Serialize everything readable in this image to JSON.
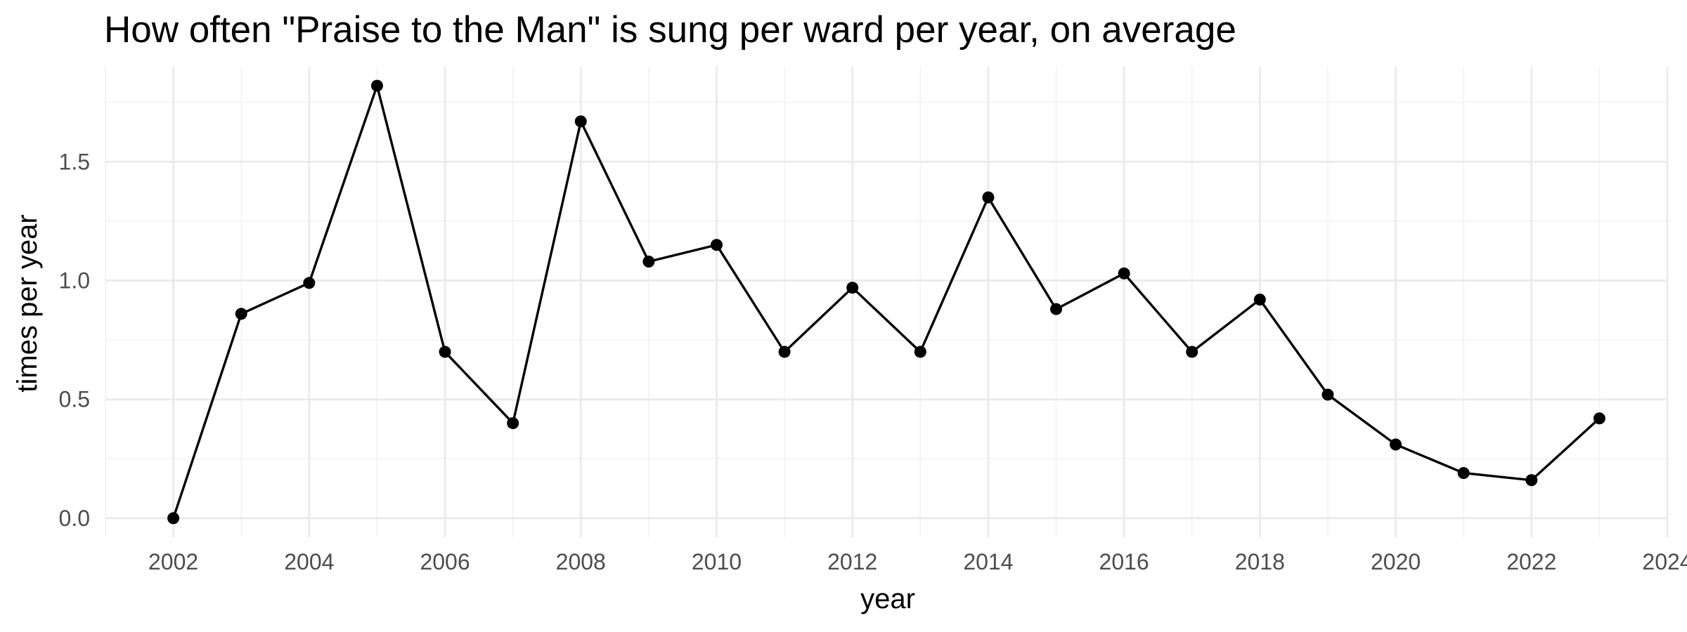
{
  "chart_data": {
    "type": "line",
    "title": "How often \"Praise to the Man\" is sung per ward per year, on average",
    "xlabel": "year",
    "ylabel": "times per year",
    "x": [
      2002,
      2003,
      2004,
      2005,
      2006,
      2007,
      2008,
      2009,
      2010,
      2011,
      2012,
      2013,
      2014,
      2015,
      2016,
      2017,
      2018,
      2019,
      2020,
      2021,
      2022,
      2023
    ],
    "series": [
      {
        "values": [
          0.0,
          0.86,
          0.99,
          1.82,
          0.7,
          0.4,
          1.67,
          1.08,
          1.15,
          0.7,
          0.97,
          0.7,
          1.35,
          0.88,
          1.03,
          0.7,
          0.92,
          0.52,
          0.31,
          0.19,
          0.16,
          0.42
        ]
      }
    ],
    "xlim": [
      2001,
      2024
    ],
    "ylim": [
      -0.08,
      1.9
    ],
    "x_ticks": [
      2002,
      2004,
      2006,
      2008,
      2010,
      2012,
      2014,
      2016,
      2018,
      2020,
      2022,
      2024
    ],
    "x_tick_labels": [
      "2002",
      "2004",
      "2006",
      "2008",
      "2010",
      "2012",
      "2014",
      "2016",
      "2018",
      "2020",
      "2022",
      "2024"
    ],
    "y_ticks": [
      0,
      0.5,
      1.0,
      1.5
    ],
    "y_tick_labels": [
      "0.0",
      "0.5",
      "1.0",
      "1.5"
    ],
    "grid": true,
    "legend": "none",
    "colors": {
      "line": "#000000",
      "point": "#000000",
      "grid_major": "#ebebeb",
      "grid_minor": "#f2f2f2",
      "tick_text": "#4d4d4d",
      "text": "#000000",
      "background": "#ffffff"
    }
  }
}
